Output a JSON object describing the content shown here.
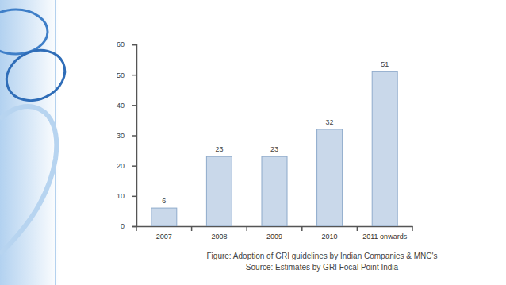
{
  "chart_data": {
    "type": "bar",
    "title": "Figure: Adoption of GRI guidelines by Indian Companies & MNC's",
    "subtitle": "Source: Estimates by GRI Focal Point India",
    "categories": [
      "2007",
      "2008",
      "2009",
      "2010",
      "2011 onwards"
    ],
    "values": [
      6,
      23,
      23,
      32,
      51
    ],
    "color": "#c9d8ea",
    "ylim": [
      0,
      60
    ],
    "yticks": [
      0,
      10,
      20,
      30,
      40,
      50,
      60
    ],
    "grid": false,
    "data_labels": true
  }
}
